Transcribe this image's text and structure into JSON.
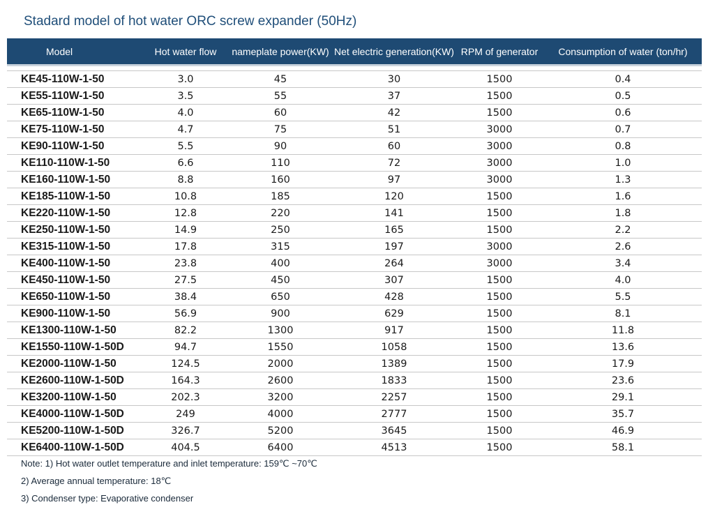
{
  "title": "Stadard model of hot water ORC screw expander (50Hz)",
  "table": {
    "headers": [
      "Model",
      "Hot water flow",
      "nameplate power(KW)",
      "Net electric generation(KW)",
      "RPM of generator",
      "Consumption of water (ton/hr)"
    ],
    "rows": [
      [
        "KE45-110W-1-50",
        "3.0",
        "45",
        "30",
        "1500",
        "0.4"
      ],
      [
        "KE55-110W-1-50",
        "3.5",
        "55",
        "37",
        "1500",
        "0.5"
      ],
      [
        "KE65-110W-1-50",
        "4.0",
        "60",
        "42",
        "1500",
        "0.6"
      ],
      [
        "KE75-110W-1-50",
        "4.7",
        "75",
        "51",
        "3000",
        "0.7"
      ],
      [
        "KE90-110W-1-50",
        "5.5",
        "90",
        "60",
        "3000",
        "0.8"
      ],
      [
        "KE110-110W-1-50",
        "6.6",
        "110",
        "72",
        "3000",
        "1.0"
      ],
      [
        "KE160-110W-1-50",
        "8.8",
        "160",
        "97",
        "3000",
        "1.3"
      ],
      [
        "KE185-110W-1-50",
        "10.8",
        "185",
        "120",
        "1500",
        "1.6"
      ],
      [
        "KE220-110W-1-50",
        "12.8",
        "220",
        "141",
        "1500",
        "1.8"
      ],
      [
        "KE250-110W-1-50",
        "14.9",
        "250",
        "165",
        "1500",
        "2.2"
      ],
      [
        "KE315-110W-1-50",
        "17.8",
        "315",
        "197",
        "3000",
        "2.6"
      ],
      [
        "KE400-110W-1-50",
        "23.8",
        "400",
        "264",
        "3000",
        "3.4"
      ],
      [
        "KE450-110W-1-50",
        "27.5",
        "450",
        "307",
        "1500",
        "4.0"
      ],
      [
        "KE650-110W-1-50",
        "38.4",
        "650",
        "428",
        "1500",
        "5.5"
      ],
      [
        "KE900-110W-1-50",
        "56.9",
        "900",
        "629",
        "1500",
        "8.1"
      ],
      [
        "KE1300-110W-1-50",
        "82.2",
        "1300",
        "917",
        "1500",
        "11.8"
      ],
      [
        "KE1550-110W-1-50D",
        "94.7",
        "1550",
        "1058",
        "1500",
        "13.6"
      ],
      [
        "KE2000-110W-1-50",
        "124.5",
        "2000",
        "1389",
        "1500",
        "17.9"
      ],
      [
        "KE2600-110W-1-50D",
        "164.3",
        "2600",
        "1833",
        "1500",
        "23.6"
      ],
      [
        "KE3200-110W-1-50",
        "202.3",
        "3200",
        "2257",
        "1500",
        "29.1"
      ],
      [
        "KE4000-110W-1-50D",
        "249",
        "4000",
        "2777",
        "1500",
        "35.7"
      ],
      [
        "KE5200-110W-1-50D",
        "326.7",
        "5200",
        "3645",
        "1500",
        "46.9"
      ],
      [
        "KE6400-110W-1-50D",
        "404.5",
        "6400",
        "4513",
        "1500",
        "58.1"
      ]
    ]
  },
  "notes": [
    "Note: 1) Hot water outlet temperature and inlet temperature: 159℃ ~70℃",
    "2) Average annual temperature: 18℃",
    "3) Condenser type: Evaporative condenser"
  ],
  "colors": {
    "header_bg": "#1e4a73",
    "title": "#1f4e79"
  }
}
